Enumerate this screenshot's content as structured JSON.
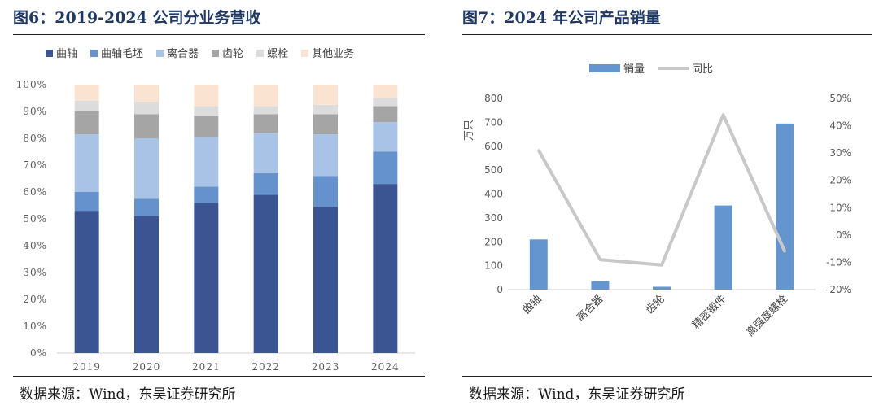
{
  "left": {
    "title": "图6：2019-2024 公司分业务营收",
    "source": "数据来源：Wind，东吴证券研究所"
  },
  "right": {
    "title": "图7：2024 年公司产品销量",
    "source": "数据来源：Wind，东吴证券研究所"
  },
  "chart_data": [
    {
      "type": "bar",
      "stacked": true,
      "percent": true,
      "title": "2019-2024 公司分业务营收",
      "categories": [
        "2019",
        "2020",
        "2021",
        "2022",
        "2023",
        "2024"
      ],
      "series": [
        {
          "name": "曲轴",
          "color": "#3a5592",
          "values": [
            53,
            51,
            56,
            59,
            54.5,
            63
          ]
        },
        {
          "name": "曲轴毛坯",
          "color": "#6591cc",
          "values": [
            7,
            6.5,
            6,
            8,
            11.5,
            12
          ]
        },
        {
          "name": "离合器",
          "color": "#a8c3e5",
          "values": [
            21.5,
            22.5,
            18.5,
            15,
            15.5,
            11
          ]
        },
        {
          "name": "齿轮",
          "color": "#a5a5a5",
          "values": [
            8.5,
            9,
            8,
            7,
            7.5,
            6
          ]
        },
        {
          "name": "螺栓",
          "color": "#dcdcdc",
          "values": [
            4,
            4.5,
            3.5,
            3,
            3.5,
            3
          ]
        },
        {
          "name": "其他业务",
          "color": "#fbe3d2",
          "values": [
            6,
            6.5,
            8,
            8,
            7.5,
            5
          ]
        }
      ],
      "yticks": [
        "0%",
        "10%",
        "20%",
        "30%",
        "40%",
        "50%",
        "60%",
        "70%",
        "80%",
        "90%",
        "100%"
      ],
      "ylim": [
        0,
        100
      ],
      "legend_position": "top"
    },
    {
      "type": "bar",
      "combo": "bar+line",
      "title": "2024 年公司产品销量",
      "categories": [
        "曲轴",
        "离合器",
        "齿轮",
        "精密锻件",
        "高强度螺栓"
      ],
      "series": [
        {
          "name": "销量",
          "type": "bar",
          "axis": "left",
          "color": "#6595cf",
          "values": [
            210,
            35,
            12,
            352,
            695
          ]
        },
        {
          "name": "同比",
          "type": "line",
          "axis": "right",
          "color": "#c8c8c8",
          "values": [
            31,
            -9,
            -11,
            44,
            -6
          ]
        }
      ],
      "ylabel": "万只",
      "ylim": [
        0,
        800
      ],
      "yticks": [
        "0",
        "100",
        "200",
        "300",
        "400",
        "500",
        "600",
        "700",
        "800"
      ],
      "y2lim": [
        -20,
        50
      ],
      "y2ticks": [
        "-20%",
        "-10%",
        "0%",
        "10%",
        "20%",
        "30%",
        "40%",
        "50%"
      ],
      "legend_position": "top"
    }
  ]
}
